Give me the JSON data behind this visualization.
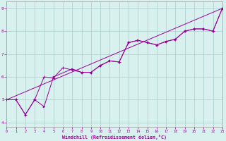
{
  "xlabel": "Windchill (Refroidissement éolien,°C)",
  "xlim": [
    0,
    23
  ],
  "ylim": [
    3.8,
    9.3
  ],
  "xticks": [
    0,
    1,
    2,
    3,
    4,
    5,
    6,
    7,
    8,
    9,
    10,
    11,
    12,
    13,
    14,
    15,
    16,
    17,
    18,
    19,
    20,
    21,
    22,
    23
  ],
  "yticks": [
    4,
    5,
    6,
    7,
    8,
    9
  ],
  "bg_color": "#d8f0ee",
  "line_color": "#990099",
  "grid_color": "#aacccc",
  "line1_x": [
    0,
    1,
    2,
    3,
    4,
    5,
    7,
    8,
    9,
    10,
    11,
    12,
    13,
    14,
    15,
    16,
    17,
    18,
    19,
    20,
    21,
    22,
    23
  ],
  "line1_y": [
    5.0,
    5.0,
    4.35,
    5.0,
    4.7,
    6.0,
    6.35,
    6.2,
    6.2,
    6.5,
    6.7,
    6.65,
    7.5,
    7.6,
    7.5,
    7.4,
    7.55,
    7.65,
    8.0,
    8.1,
    8.1,
    8.0,
    9.0
  ],
  "line2_x": [
    0,
    1,
    2,
    3,
    4,
    5,
    6,
    7,
    8,
    9,
    10,
    11,
    12,
    13,
    14,
    15,
    16,
    17,
    18,
    19,
    20,
    21,
    22,
    23
  ],
  "line2_y": [
    5.0,
    5.0,
    4.35,
    5.0,
    6.0,
    5.95,
    6.4,
    6.3,
    6.2,
    6.2,
    6.5,
    6.7,
    6.65,
    7.5,
    7.6,
    7.5,
    7.4,
    7.55,
    7.65,
    8.0,
    8.1,
    8.1,
    8.0,
    9.0
  ],
  "line3_x": [
    0,
    23
  ],
  "line3_y": [
    5.0,
    9.0
  ]
}
